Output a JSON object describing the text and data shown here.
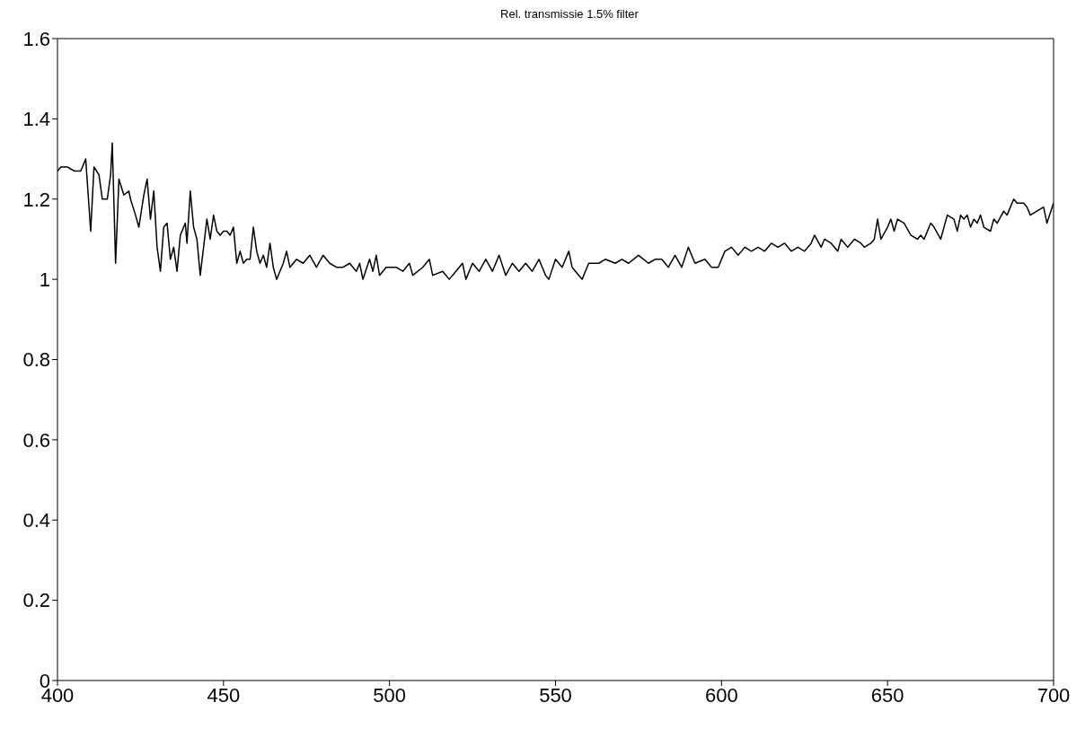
{
  "chart_data": {
    "type": "line",
    "title": "Rel. transmissie 1.5% filter",
    "x": [
      400,
      401,
      403,
      405,
      407,
      408.5,
      410,
      411,
      412.5,
      413.5,
      415,
      416,
      416.5,
      417.5,
      418.5,
      420,
      421.5,
      422,
      423.5,
      424.5,
      426,
      427,
      428,
      429,
      430,
      431,
      432,
      433,
      434,
      435,
      436,
      437,
      438.5,
      439,
      440,
      441,
      442,
      443,
      444,
      445,
      446,
      447,
      448,
      449,
      450,
      451,
      452,
      453,
      454,
      455,
      456,
      457,
      458,
      459,
      460,
      461,
      462,
      463,
      464,
      465,
      466,
      467,
      468,
      469,
      470,
      472,
      474,
      476,
      478,
      480,
      482,
      484,
      486,
      488,
      490,
      491,
      492,
      494,
      495,
      496,
      497,
      499,
      502,
      504,
      506,
      507,
      510,
      512,
      513,
      516,
      518,
      520,
      522,
      523,
      525,
      527,
      529,
      531,
      533,
      535,
      537,
      539,
      541,
      543,
      545,
      547,
      548,
      550,
      552,
      554,
      555,
      557,
      558,
      560,
      563,
      565,
      568,
      570,
      572,
      575,
      578,
      580,
      582,
      584,
      586,
      588,
      590,
      592,
      595,
      597,
      599,
      601,
      603,
      605,
      607,
      609,
      611,
      613,
      615,
      617,
      619,
      621,
      623,
      625,
      627,
      628,
      630,
      631,
      633,
      635,
      636,
      638,
      640,
      642,
      643,
      645,
      646,
      647,
      648,
      650,
      651,
      652,
      653,
      655,
      657,
      659,
      660,
      661,
      663,
      664,
      666,
      668,
      670,
      671,
      672,
      673,
      674,
      675,
      676,
      677,
      678,
      679,
      681,
      682,
      683,
      685,
      686,
      688,
      689,
      690,
      691,
      692,
      693,
      695,
      697,
      698,
      700
    ],
    "series": [
      {
        "color": "#000000",
        "values": [
          1.27,
          1.28,
          1.28,
          1.27,
          1.27,
          1.3,
          1.12,
          1.28,
          1.26,
          1.2,
          1.2,
          1.26,
          1.34,
          1.04,
          1.25,
          1.21,
          1.22,
          1.2,
          1.16,
          1.13,
          1.21,
          1.25,
          1.15,
          1.22,
          1.08,
          1.02,
          1.13,
          1.14,
          1.05,
          1.08,
          1.02,
          1.11,
          1.14,
          1.09,
          1.22,
          1.13,
          1.1,
          1.01,
          1.08,
          1.15,
          1.1,
          1.16,
          1.12,
          1.11,
          1.12,
          1.12,
          1.11,
          1.13,
          1.04,
          1.07,
          1.04,
          1.05,
          1.05,
          1.13,
          1.07,
          1.04,
          1.06,
          1.03,
          1.09,
          1.03,
          1.0,
          1.02,
          1.04,
          1.07,
          1.03,
          1.05,
          1.04,
          1.06,
          1.03,
          1.06,
          1.04,
          1.03,
          1.03,
          1.04,
          1.02,
          1.04,
          1.0,
          1.05,
          1.02,
          1.06,
          1.01,
          1.03,
          1.03,
          1.02,
          1.04,
          1.01,
          1.03,
          1.05,
          1.01,
          1.02,
          1.0,
          1.02,
          1.04,
          1.0,
          1.04,
          1.02,
          1.05,
          1.02,
          1.06,
          1.01,
          1.04,
          1.02,
          1.04,
          1.02,
          1.05,
          1.01,
          1.0,
          1.05,
          1.03,
          1.07,
          1.03,
          1.01,
          1.0,
          1.04,
          1.04,
          1.05,
          1.04,
          1.05,
          1.04,
          1.06,
          1.04,
          1.05,
          1.05,
          1.03,
          1.06,
          1.03,
          1.08,
          1.04,
          1.05,
          1.03,
          1.03,
          1.07,
          1.08,
          1.06,
          1.08,
          1.07,
          1.08,
          1.07,
          1.09,
          1.08,
          1.09,
          1.07,
          1.08,
          1.07,
          1.09,
          1.11,
          1.08,
          1.1,
          1.09,
          1.07,
          1.1,
          1.08,
          1.1,
          1.09,
          1.08,
          1.09,
          1.1,
          1.15,
          1.1,
          1.13,
          1.15,
          1.12,
          1.15,
          1.14,
          1.11,
          1.1,
          1.11,
          1.1,
          1.14,
          1.13,
          1.1,
          1.16,
          1.15,
          1.12,
          1.16,
          1.15,
          1.16,
          1.13,
          1.15,
          1.14,
          1.16,
          1.13,
          1.12,
          1.15,
          1.14,
          1.17,
          1.16,
          1.2,
          1.19,
          1.19,
          1.19,
          1.18,
          1.16,
          1.17,
          1.18,
          1.14,
          1.19
        ]
      }
    ],
    "xlim": [
      400,
      700
    ],
    "xticks": [
      400,
      450,
      500,
      550,
      600,
      650,
      700
    ],
    "ylim": [
      0,
      1.6
    ],
    "yticks": [
      0,
      0.2,
      0.4,
      0.6,
      0.8,
      1,
      1.2,
      1.4,
      1.6
    ],
    "grid": false,
    "legend": false,
    "marker": "none",
    "line_style": "solid"
  }
}
